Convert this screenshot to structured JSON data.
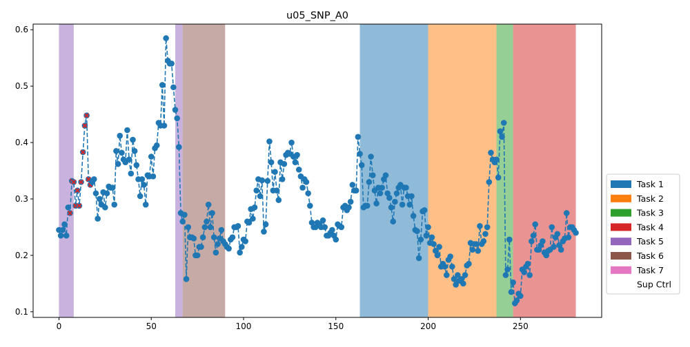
{
  "chart_data": {
    "type": "line",
    "title": "u05_SNP_A0",
    "xlabel": "",
    "ylabel": "",
    "xlim": [
      -14,
      294
    ],
    "ylim": [
      0.09,
      0.61
    ],
    "x_ticks": [
      0,
      50,
      100,
      150,
      200,
      250
    ],
    "y_ticks": [
      0.1,
      0.2,
      0.3,
      0.4,
      0.5,
      0.6
    ],
    "grid": false,
    "legend_position": "outside-right",
    "series_color": "#1f77b4",
    "line_style": "dashed",
    "marker_color": "#1f77b4",
    "highlight_marker_color": "#d62728",
    "legend": [
      {
        "label": "Task 1",
        "color": "#1f77b4"
      },
      {
        "label": "Task 2",
        "color": "#ff7f0e"
      },
      {
        "label": "Task 3",
        "color": "#2ca02c"
      },
      {
        "label": "Task 4",
        "color": "#d62728"
      },
      {
        "label": "Task 5",
        "color": "#9467bd"
      },
      {
        "label": "Task 6",
        "color": "#8c564b"
      },
      {
        "label": "Task 7",
        "color": "#e377c2"
      },
      {
        "label": "Sup Ctrl",
        "color": "#ffffff"
      }
    ],
    "spans": [
      {
        "task": "Task 5",
        "start": 0,
        "end": 8,
        "color": "#9467bd"
      },
      {
        "task": "Task 5",
        "start": 63,
        "end": 67,
        "color": "#9467bd"
      },
      {
        "task": "Task 6",
        "start": 67,
        "end": 90,
        "color": "#8c564b"
      },
      {
        "task": "Task 1",
        "start": 163,
        "end": 200,
        "color": "#1f77b4"
      },
      {
        "task": "Task 2",
        "start": 200,
        "end": 237,
        "color": "#ff7f0e"
      },
      {
        "task": "Task 3",
        "start": 237,
        "end": 246,
        "color": "#2ca02c"
      },
      {
        "task": "Task 4",
        "start": 246,
        "end": 280,
        "color": "#d62728"
      }
    ],
    "highlight_x": [
      6,
      7,
      8,
      9,
      10,
      11,
      12,
      13,
      14,
      15,
      16,
      17
    ],
    "y": [
      0.245,
      0.235,
      0.245,
      0.255,
      0.235,
      0.285,
      0.275,
      0.332,
      0.33,
      0.288,
      0.315,
      0.288,
      0.33,
      0.383,
      0.43,
      0.448,
      0.335,
      0.325,
      0.33,
      0.335,
      0.31,
      0.265,
      0.3,
      0.29,
      0.312,
      0.285,
      0.31,
      0.322,
      0.32,
      0.32,
      0.29,
      0.385,
      0.362,
      0.412,
      0.382,
      0.37,
      0.365,
      0.422,
      0.37,
      0.345,
      0.405,
      0.385,
      0.36,
      0.335,
      0.305,
      0.335,
      0.325,
      0.29,
      0.342,
      0.34,
      0.375,
      0.34,
      0.39,
      0.395,
      0.435,
      0.43,
      0.502,
      0.43,
      0.585,
      0.545,
      0.54,
      0.54,
      0.498,
      0.458,
      0.443,
      0.392,
      0.275,
      0.26,
      0.272,
      0.158,
      0.25,
      0.232,
      0.232,
      0.23,
      0.2,
      0.2,
      0.215,
      0.215,
      0.232,
      0.25,
      0.26,
      0.29,
      0.25,
      0.275,
      0.232,
      0.205,
      0.22,
      0.23,
      0.245,
      0.225,
      0.22,
      0.215,
      0.212,
      0.228,
      0.232,
      0.25,
      0.25,
      0.252,
      0.205,
      0.215,
      0.228,
      0.225,
      0.26,
      0.258,
      0.282,
      0.265,
      0.285,
      0.315,
      0.335,
      0.305,
      0.333,
      0.242,
      0.255,
      0.332,
      0.402,
      0.365,
      0.315,
      0.348,
      0.315,
      0.298,
      0.365,
      0.335,
      0.362,
      0.378,
      0.382,
      0.38,
      0.4,
      0.375,
      0.365,
      0.378,
      0.352,
      0.34,
      0.32,
      0.335,
      0.33,
      0.31,
      0.288,
      0.258,
      0.25,
      0.25,
      0.258,
      0.255,
      0.25,
      0.262,
      0.25,
      0.235,
      0.235,
      0.24,
      0.245,
      0.235,
      0.228,
      0.255,
      0.252,
      0.25,
      0.285,
      0.288,
      0.28,
      0.285,
      0.295,
      0.325,
      0.315,
      0.315,
      0.41,
      0.38,
      0.36,
      0.285,
      0.288,
      0.288,
      0.33,
      0.375,
      0.342,
      0.315,
      0.292,
      0.32,
      0.31,
      0.32,
      0.335,
      0.342,
      0.31,
      0.302,
      0.285,
      0.26,
      0.295,
      0.31,
      0.32,
      0.325,
      0.29,
      0.32,
      0.32,
      0.305,
      0.29,
      0.305,
      0.27,
      0.245,
      0.243,
      0.195,
      0.228,
      0.278,
      0.28,
      0.235,
      0.25,
      0.222,
      0.232,
      0.22,
      0.208,
      0.2,
      0.215,
      0.18,
      0.185,
      0.18,
      0.165,
      0.192,
      0.198,
      0.18,
      0.158,
      0.148,
      0.165,
      0.155,
      0.158,
      0.15,
      0.165,
      0.182,
      0.185,
      0.222,
      0.21,
      0.22,
      0.22,
      0.208,
      0.252,
      0.22,
      0.225,
      0.238,
      0.25,
      0.33,
      0.382,
      0.37,
      0.365,
      0.37,
      0.338,
      0.42,
      0.41,
      0.435,
      0.165,
      0.175,
      0.228,
      0.135,
      0.152,
      0.115,
      0.12,
      0.132,
      0.128,
      0.175,
      0.17,
      0.18,
      0.185,
      0.165,
      0.225,
      0.235,
      0.255,
      0.21,
      0.21,
      0.218,
      0.225,
      0.205,
      0.2,
      0.208,
      0.21,
      0.25,
      0.215,
      0.232,
      0.238,
      0.218,
      0.21,
      0.225,
      0.23,
      0.275,
      0.232,
      0.25,
      0.25,
      0.245,
      0.24
    ]
  }
}
